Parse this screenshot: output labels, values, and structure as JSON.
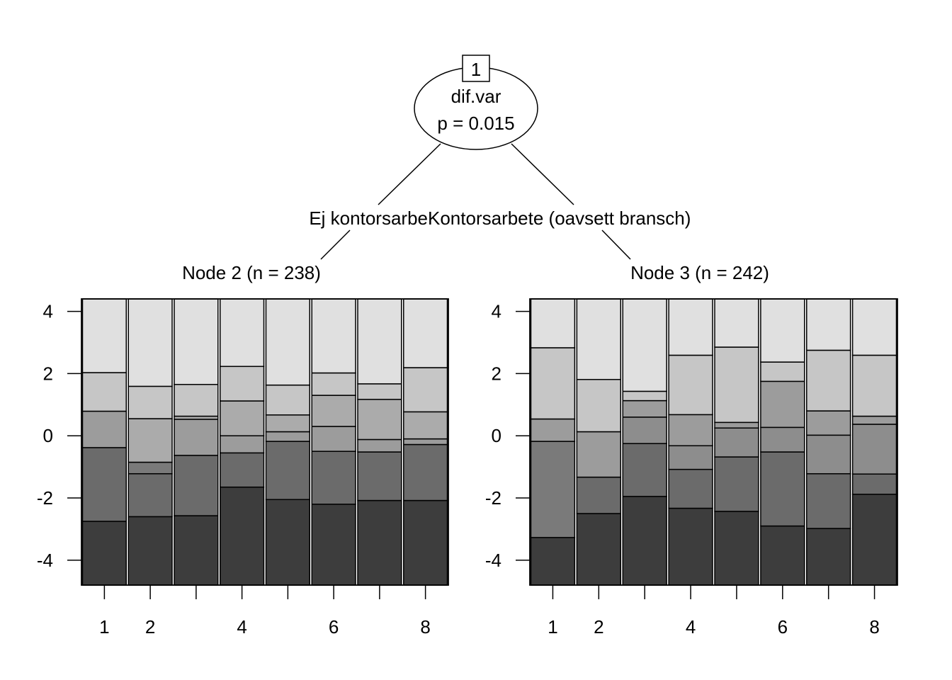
{
  "tree": {
    "root": {
      "id_label": "1",
      "variable": "dif.var",
      "p_label": "p = 0.015"
    },
    "edges": {
      "left": "Ej kontorsarbe",
      "right": "Kontorsarbete (oavsett bransch)"
    }
  },
  "chart_data": [
    {
      "type": "bar",
      "subtype": "stacked-proportion",
      "title": "Node 2 (n = 238)",
      "xlabel": "",
      "ylabel": "",
      "ylim": [
        -4.8,
        4.4
      ],
      "y_ticks": [
        4,
        2,
        0,
        -2,
        -4
      ],
      "y_tick_labels": [
        "4",
        "2",
        "0",
        "-2",
        "-4"
      ],
      "x_ticks": [
        1,
        2,
        3,
        4,
        5,
        6,
        7,
        8
      ],
      "x_tick_labels": [
        "1",
        "2",
        "",
        "4",
        "",
        "6",
        "",
        "8"
      ],
      "fill_colors": [
        "#3d3d3d",
        "#6b6b6b",
        "#7a7a7a",
        "#8d8d8d",
        "#9c9c9c",
        "#ababab",
        "#c6c6c6",
        "#e0e0e0"
      ],
      "bars": [
        {
          "x": 1,
          "boundaries": [
            -2.75,
            -0.38,
            -0.38,
            0.79,
            0.79,
            2.03
          ]
        },
        {
          "x": 2,
          "boundaries": [
            -2.6,
            -1.22,
            -0.85,
            -0.85,
            0.55,
            1.59
          ]
        },
        {
          "x": 3,
          "boundaries": [
            -2.57,
            -0.63,
            -0.63,
            0.53,
            0.63,
            1.65
          ]
        },
        {
          "x": 4,
          "boundaries": [
            -1.65,
            -0.55,
            -0.55,
            0.0,
            1.12,
            2.23
          ]
        },
        {
          "x": 5,
          "boundaries": [
            -2.05,
            -0.18,
            -0.18,
            0.13,
            0.67,
            1.63
          ]
        },
        {
          "x": 6,
          "boundaries": [
            -2.2,
            -0.5,
            -0.5,
            0.3,
            1.3,
            2.02
          ]
        },
        {
          "x": 7,
          "boundaries": [
            -2.08,
            -0.52,
            -0.52,
            -0.12,
            1.17,
            1.67
          ]
        },
        {
          "x": 8,
          "boundaries": [
            -2.08,
            -0.28,
            -0.28,
            -0.1,
            0.77,
            2.19
          ]
        }
      ]
    },
    {
      "type": "bar",
      "subtype": "stacked-proportion",
      "title": "Node 3 (n = 242)",
      "xlabel": "",
      "ylabel": "",
      "ylim": [
        -4.8,
        4.4
      ],
      "y_ticks": [
        4,
        2,
        0,
        -2,
        -4
      ],
      "y_tick_labels": [
        "4",
        "2",
        "0",
        "-2",
        "-4"
      ],
      "x_ticks": [
        1,
        2,
        3,
        4,
        5,
        6,
        7,
        8
      ],
      "x_tick_labels": [
        "1",
        "2",
        "",
        "4",
        "",
        "6",
        "",
        "8"
      ],
      "fill_colors": [
        "#3d3d3d",
        "#6b6b6b",
        "#7a7a7a",
        "#8d8d8d",
        "#9c9c9c",
        "#ababab",
        "#c6c6c6",
        "#e0e0e0"
      ],
      "bars": [
        {
          "x": 1,
          "boundaries": [
            -3.27,
            -3.27,
            -0.18,
            -0.18,
            -0.18,
            0.54,
            0.54,
            2.83
          ]
        },
        {
          "x": 2,
          "boundaries": [
            -2.5,
            -1.33,
            -1.33,
            -1.33,
            0.13,
            0.13,
            1.81
          ]
        },
        {
          "x": 3,
          "boundaries": [
            -1.95,
            -0.25,
            -0.25,
            0.6,
            1.13,
            1.13,
            1.43
          ]
        },
        {
          "x": 4,
          "boundaries": [
            -2.33,
            -1.08,
            -1.08,
            -0.32,
            0.68,
            0.68,
            2.59
          ]
        },
        {
          "x": 5,
          "boundaries": [
            -2.43,
            -0.68,
            -0.68,
            0.25,
            0.43,
            0.43,
            2.85
          ]
        },
        {
          "x": 6,
          "boundaries": [
            -2.9,
            -0.52,
            -0.52,
            0.27,
            1.75,
            1.75,
            2.37
          ]
        },
        {
          "x": 7,
          "boundaries": [
            -2.98,
            -1.22,
            -1.22,
            0.02,
            0.8,
            0.8,
            2.75
          ]
        },
        {
          "x": 8,
          "boundaries": [
            -1.88,
            -1.23,
            -1.23,
            0.37,
            0.63,
            0.63,
            2.59
          ]
        }
      ]
    }
  ]
}
